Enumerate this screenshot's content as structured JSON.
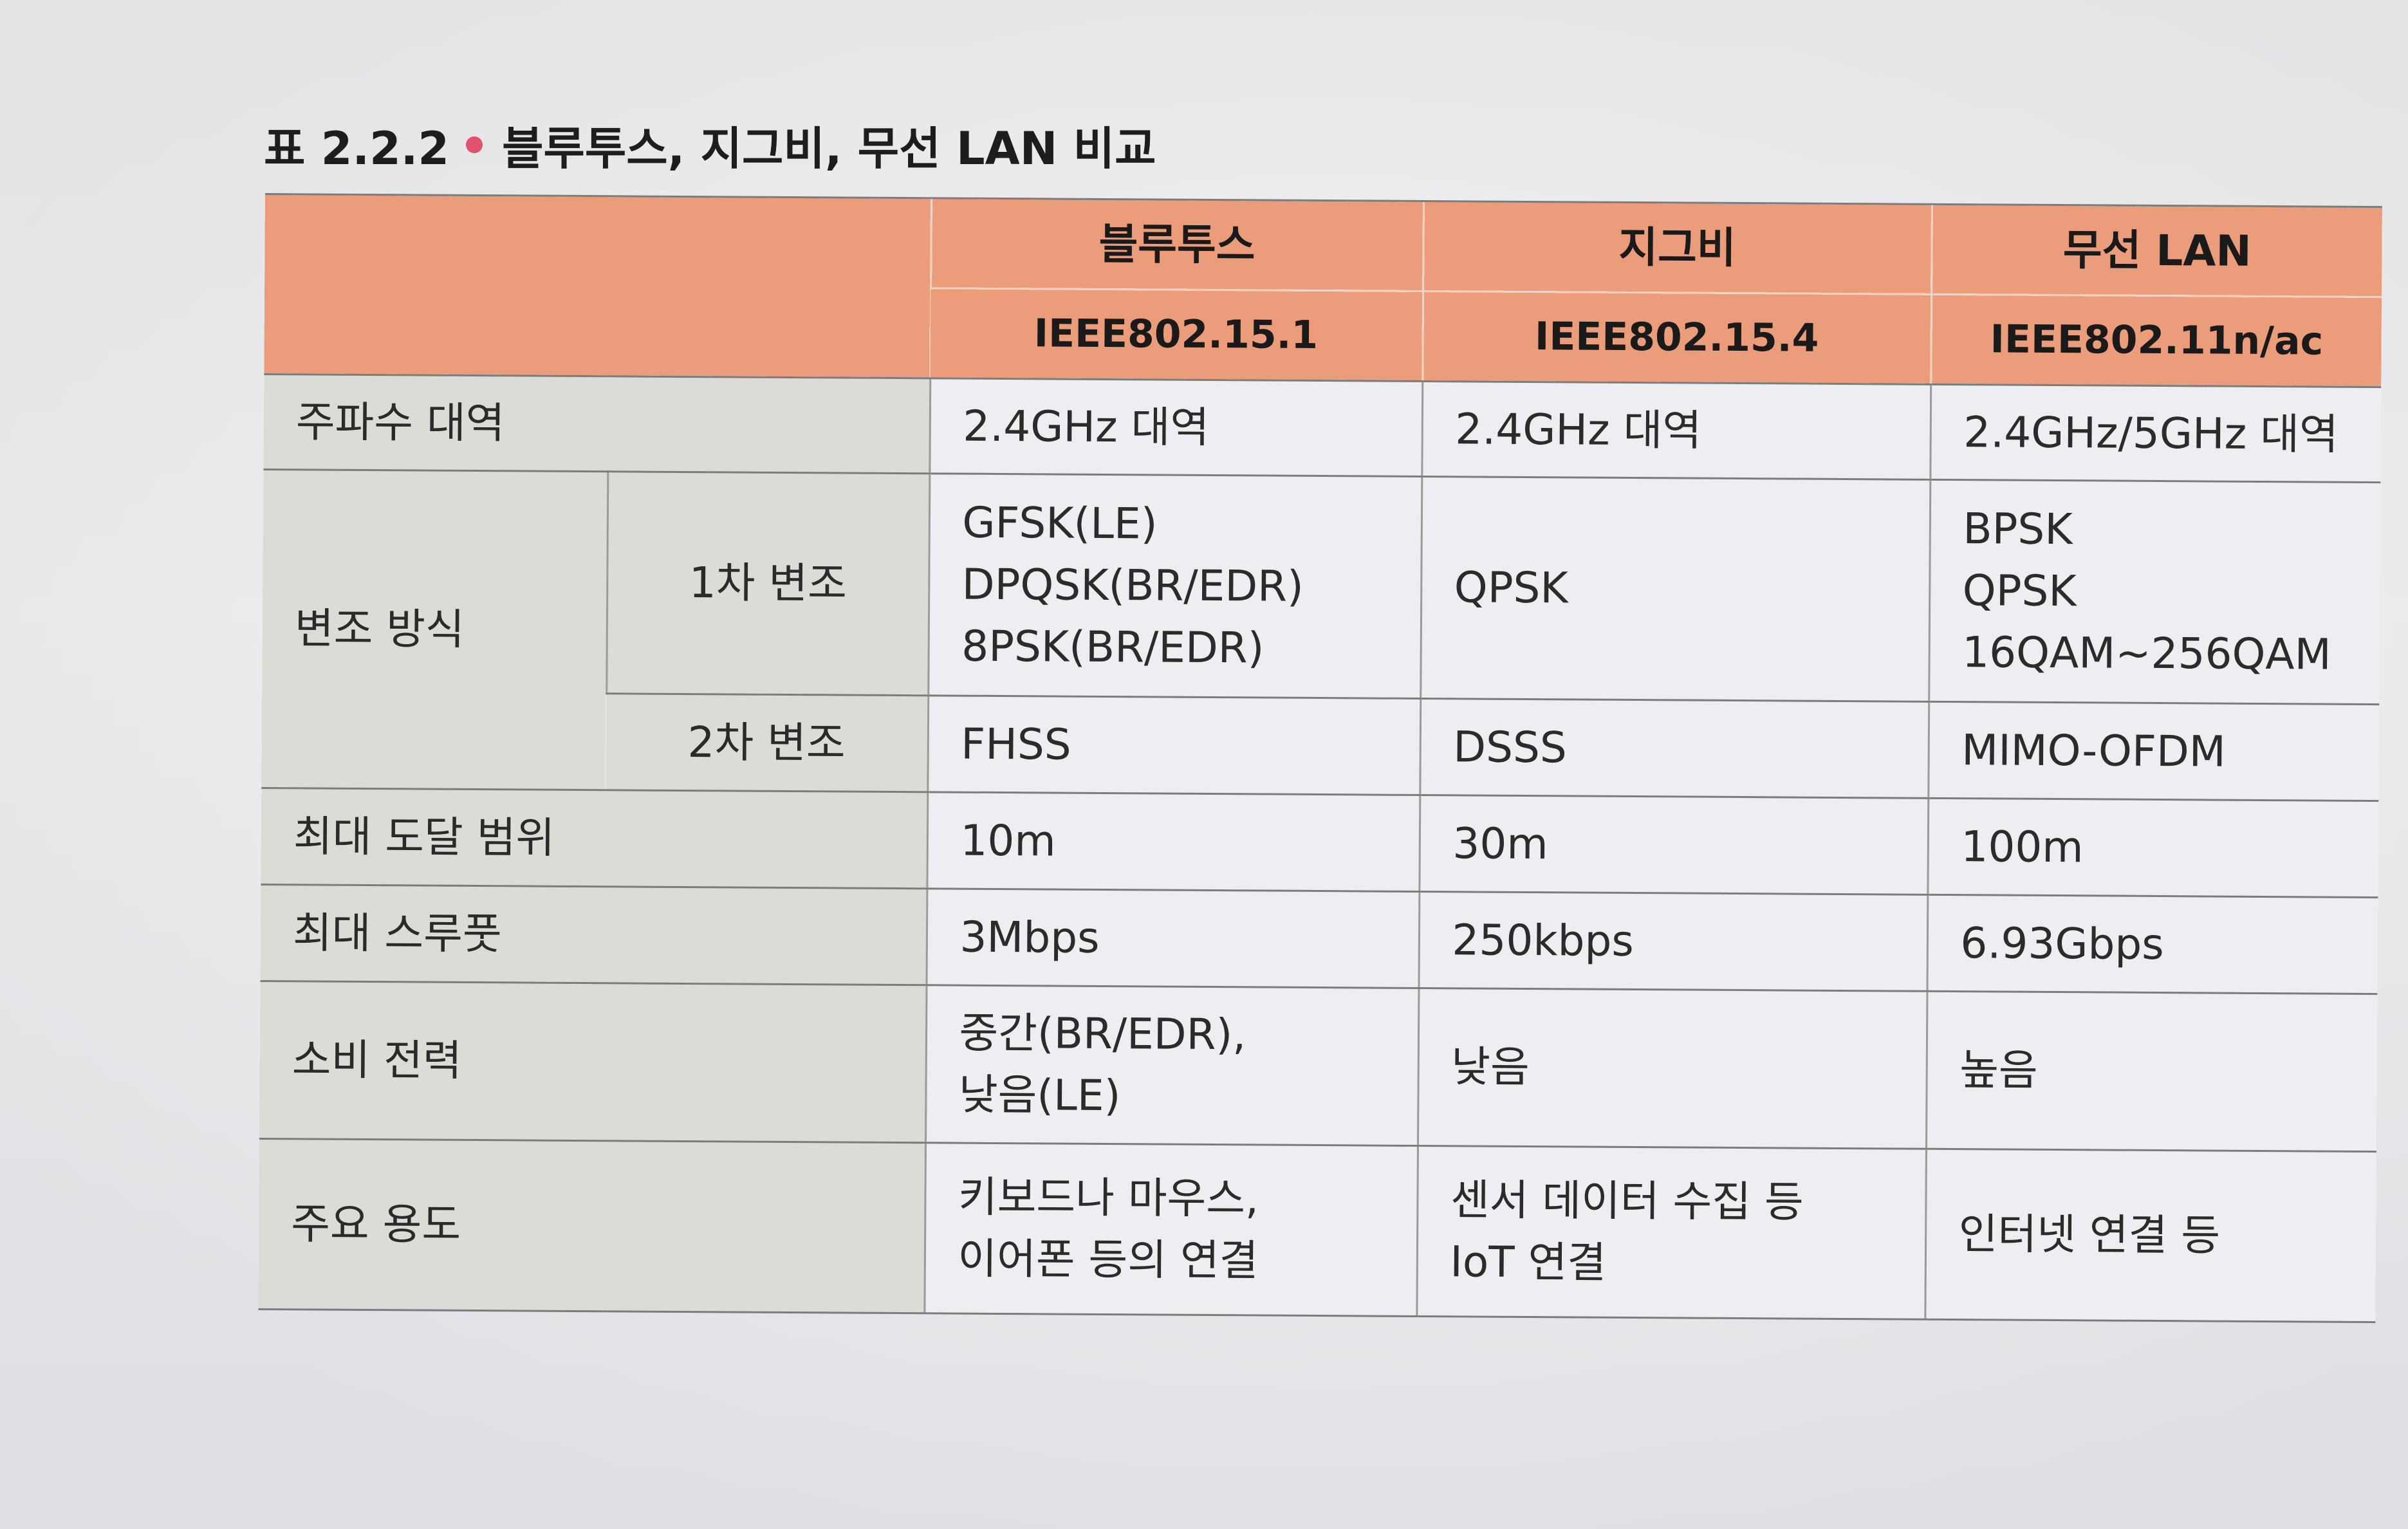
{
  "caption": {
    "number": "표 2.2.2",
    "title": "블루투스, 지그비, 무선 LAN 비교",
    "bullet_color": "#e0526b"
  },
  "colors": {
    "header_bg": "#eb9c7b",
    "rowhead_bg": "#dcdcd6",
    "cell_bg": "#eceef1"
  },
  "header": {
    "columns": [
      {
        "name": "블루투스",
        "standard": "IEEE802.15.1"
      },
      {
        "name": "지그비",
        "standard": "IEEE802.15.4"
      },
      {
        "name": "무선 LAN",
        "standard": "IEEE802.11n/ac"
      }
    ]
  },
  "rows": {
    "frequency": {
      "label": "주파수 대역",
      "values": [
        "2.4GHz 대역",
        "2.4GHz 대역",
        "2.4GHz/5GHz 대역"
      ]
    },
    "modulation": {
      "label": "변조 방식",
      "primary": {
        "label": "1차 변조",
        "values": [
          [
            "GFSK(LE)",
            "DPQSK(BR/EDR)",
            "8PSK(BR/EDR)"
          ],
          [
            "QPSK"
          ],
          [
            "BPSK",
            "QPSK",
            "16QAM~256QAM"
          ]
        ]
      },
      "secondary": {
        "label": "2차 변조",
        "values": [
          "FHSS",
          "DSSS",
          "MIMO-OFDM"
        ]
      }
    },
    "range": {
      "label": "최대 도달 범위",
      "values": [
        "10m",
        "30m",
        "100m"
      ]
    },
    "throughput": {
      "label": "최대 스루풋",
      "values": [
        "3Mbps",
        "250kbps",
        "6.93Gbps"
      ]
    },
    "power": {
      "label": "소비 전력",
      "values": [
        [
          "중간(BR/EDR),",
          "낮음(LE)"
        ],
        [
          "낮음"
        ],
        [
          "높음"
        ]
      ]
    },
    "usage": {
      "label": "주요 용도",
      "values": [
        [
          "키보드나 마우스,",
          "이어폰 등의 연결"
        ],
        [
          "센서 데이터 수집 등",
          "IoT 연결"
        ],
        [
          "인터넷 연결 등"
        ]
      ]
    }
  }
}
